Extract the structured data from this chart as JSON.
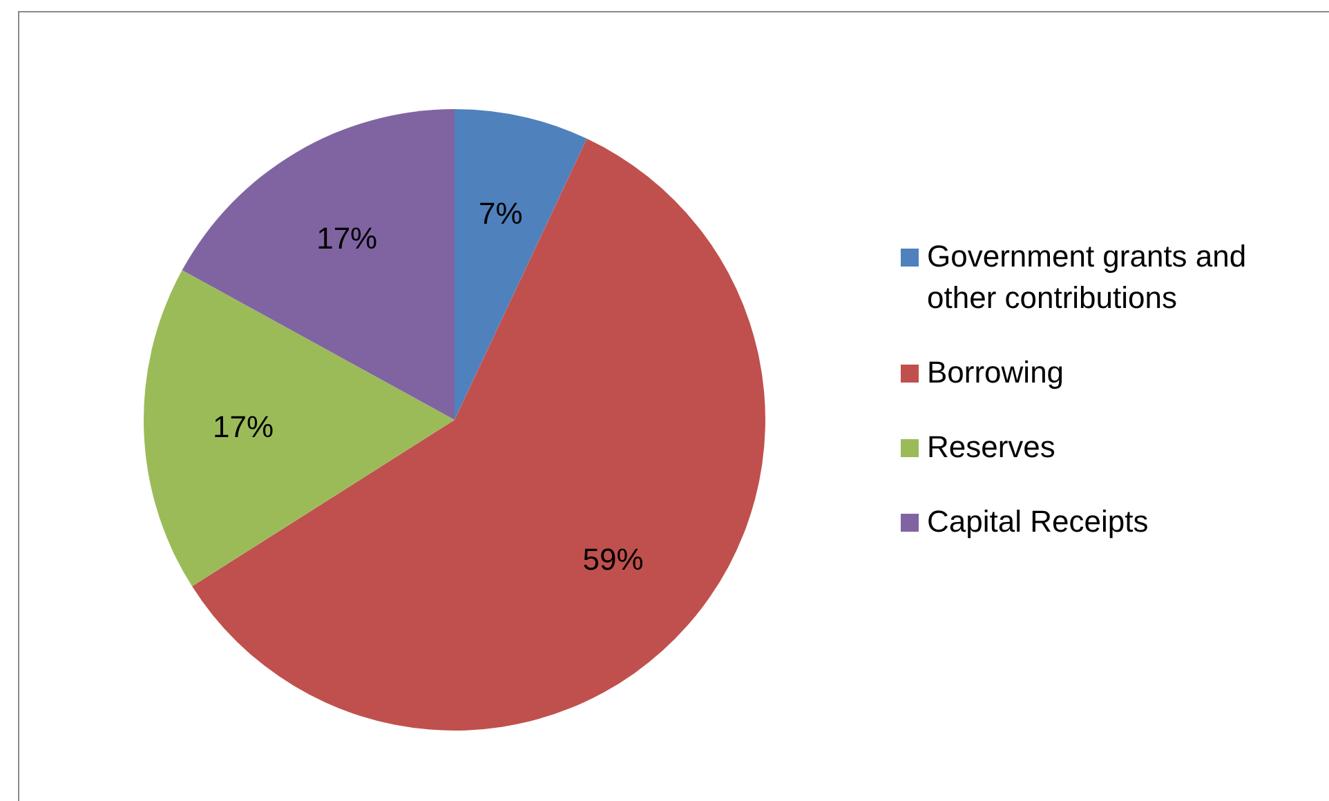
{
  "chart_data": {
    "type": "pie",
    "categories": [
      "Government grants and other contributions",
      "Borrowing",
      "Reserves",
      "Capital Receipts"
    ],
    "values": [
      7,
      59,
      17,
      17
    ],
    "colors": [
      "#4f81bd",
      "#c0504d",
      "#9bbb59",
      "#8064a2"
    ],
    "value_labels": [
      "7%",
      "59%",
      "17%",
      "17%"
    ],
    "legend": "right"
  }
}
